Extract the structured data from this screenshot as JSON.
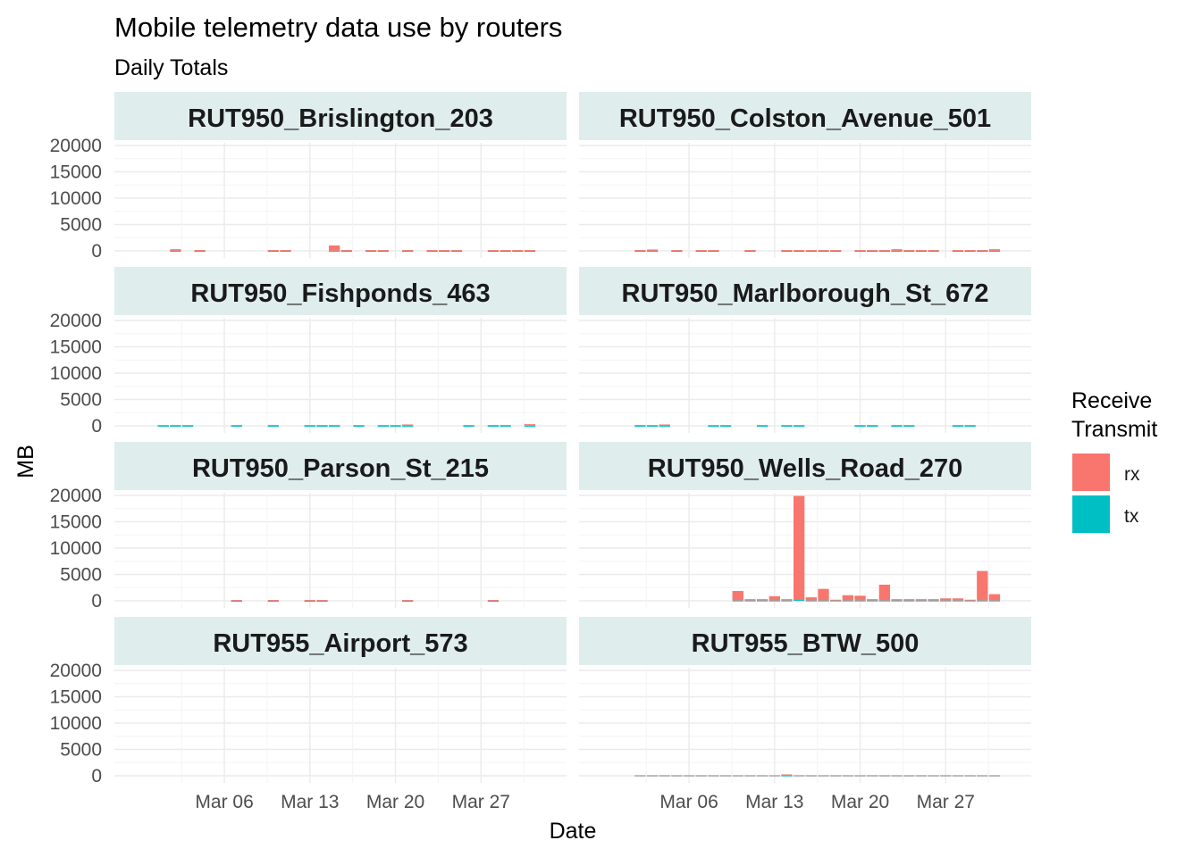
{
  "chart_data": {
    "type": "bar",
    "title": "Mobile telemetry data use by routers",
    "subtitle": "Daily Totals",
    "xlabel": "Date",
    "ylabel": "MB",
    "ylim": [
      0,
      20000
    ],
    "yticks": [
      0,
      5000,
      10000,
      15000,
      20000
    ],
    "ytick_labels": [
      "0",
      "5000",
      "10000",
      "15000",
      "20000"
    ],
    "xlim": [
      "2022-02-25",
      "2022-04-03"
    ],
    "xticks": [
      "2022-03-06",
      "2022-03-13",
      "2022-03-20",
      "2022-03-27"
    ],
    "xtick_labels": [
      "Mar 06",
      "Mar 13",
      "Mar 20",
      "Mar 27"
    ],
    "stacked": true,
    "grid": true,
    "legend": {
      "title_lines": [
        "Receive",
        "Transmit"
      ],
      "position": "right",
      "entries": [
        {
          "label": "rx",
          "color": "#F8766D"
        },
        {
          "label": "tx",
          "color": "#00BFC4"
        }
      ]
    },
    "colors": {
      "rx": "#F8766D",
      "tx": "#00BFC4",
      "strip": "#E0EDED",
      "grid_major": "#EBEBEB",
      "grid_minor": "#F4F4F4"
    },
    "panels": [
      {
        "title": "RUT950_Brislington_203",
        "data": [
          {
            "date": "2022-03-02",
            "rx": 300,
            "tx": 10
          },
          {
            "date": "2022-03-04",
            "rx": 150,
            "tx": 5
          },
          {
            "date": "2022-03-10",
            "rx": 150,
            "tx": 5
          },
          {
            "date": "2022-03-11",
            "rx": 150,
            "tx": 5
          },
          {
            "date": "2022-03-15",
            "rx": 1000,
            "tx": 20
          },
          {
            "date": "2022-03-16",
            "rx": 150,
            "tx": 5
          },
          {
            "date": "2022-03-18",
            "rx": 150,
            "tx": 5
          },
          {
            "date": "2022-03-19",
            "rx": 150,
            "tx": 5
          },
          {
            "date": "2022-03-21",
            "rx": 150,
            "tx": 5
          },
          {
            "date": "2022-03-23",
            "rx": 150,
            "tx": 5
          },
          {
            "date": "2022-03-24",
            "rx": 150,
            "tx": 5
          },
          {
            "date": "2022-03-25",
            "rx": 150,
            "tx": 5
          },
          {
            "date": "2022-03-28",
            "rx": 150,
            "tx": 5
          },
          {
            "date": "2022-03-29",
            "rx": 150,
            "tx": 5
          },
          {
            "date": "2022-03-30",
            "rx": 150,
            "tx": 5
          },
          {
            "date": "2022-03-31",
            "rx": 150,
            "tx": 5
          }
        ]
      },
      {
        "title": "RUT950_Colston_Avenue_501",
        "data": [
          {
            "date": "2022-03-02",
            "rx": 150,
            "tx": 5
          },
          {
            "date": "2022-03-03",
            "rx": 250,
            "tx": 10
          },
          {
            "date": "2022-03-05",
            "rx": 150,
            "tx": 5
          },
          {
            "date": "2022-03-07",
            "rx": 150,
            "tx": 5
          },
          {
            "date": "2022-03-08",
            "rx": 150,
            "tx": 5
          },
          {
            "date": "2022-03-11",
            "rx": 150,
            "tx": 5
          },
          {
            "date": "2022-03-14",
            "rx": 150,
            "tx": 5
          },
          {
            "date": "2022-03-15",
            "rx": 150,
            "tx": 5
          },
          {
            "date": "2022-03-16",
            "rx": 150,
            "tx": 5
          },
          {
            "date": "2022-03-17",
            "rx": 150,
            "tx": 5
          },
          {
            "date": "2022-03-18",
            "rx": 150,
            "tx": 5
          },
          {
            "date": "2022-03-20",
            "rx": 150,
            "tx": 5
          },
          {
            "date": "2022-03-21",
            "rx": 150,
            "tx": 5
          },
          {
            "date": "2022-03-22",
            "rx": 150,
            "tx": 5
          },
          {
            "date": "2022-03-23",
            "rx": 300,
            "tx": 10
          },
          {
            "date": "2022-03-24",
            "rx": 150,
            "tx": 5
          },
          {
            "date": "2022-03-25",
            "rx": 150,
            "tx": 5
          },
          {
            "date": "2022-03-26",
            "rx": 150,
            "tx": 5
          },
          {
            "date": "2022-03-28",
            "rx": 150,
            "tx": 5
          },
          {
            "date": "2022-03-29",
            "rx": 150,
            "tx": 5
          },
          {
            "date": "2022-03-30",
            "rx": 150,
            "tx": 5
          },
          {
            "date": "2022-03-31",
            "rx": 300,
            "tx": 10
          }
        ]
      },
      {
        "title": "RUT950_Fishponds_463",
        "data": [
          {
            "date": "2022-03-01",
            "rx": 150,
            "tx": 5
          },
          {
            "date": "2022-03-02",
            "rx": 150,
            "tx": 5
          },
          {
            "date": "2022-03-03",
            "rx": 150,
            "tx": 5
          },
          {
            "date": "2022-03-07",
            "rx": 150,
            "tx": 5
          },
          {
            "date": "2022-03-10",
            "rx": 150,
            "tx": 5
          },
          {
            "date": "2022-03-13",
            "rx": 150,
            "tx": 5
          },
          {
            "date": "2022-03-14",
            "rx": 150,
            "tx": 5
          },
          {
            "date": "2022-03-15",
            "rx": 150,
            "tx": 5
          },
          {
            "date": "2022-03-17",
            "rx": 150,
            "tx": 5
          },
          {
            "date": "2022-03-19",
            "rx": 150,
            "tx": 5
          },
          {
            "date": "2022-03-20",
            "rx": 150,
            "tx": 5
          },
          {
            "date": "2022-03-21",
            "rx": 250,
            "tx": 10
          },
          {
            "date": "2022-03-26",
            "rx": 150,
            "tx": 5
          },
          {
            "date": "2022-03-28",
            "rx": 150,
            "tx": 5
          },
          {
            "date": "2022-03-29",
            "rx": 150,
            "tx": 5
          },
          {
            "date": "2022-03-31",
            "rx": 300,
            "tx": 10
          }
        ]
      },
      {
        "title": "RUT950_Marlborough_St_672",
        "data": [
          {
            "date": "2022-03-02",
            "rx": 150,
            "tx": 5
          },
          {
            "date": "2022-03-03",
            "rx": 150,
            "tx": 5
          },
          {
            "date": "2022-03-04",
            "rx": 250,
            "tx": 10
          },
          {
            "date": "2022-03-08",
            "rx": 150,
            "tx": 5
          },
          {
            "date": "2022-03-09",
            "rx": 150,
            "tx": 5
          },
          {
            "date": "2022-03-12",
            "rx": 150,
            "tx": 5
          },
          {
            "date": "2022-03-14",
            "rx": 150,
            "tx": 5
          },
          {
            "date": "2022-03-15",
            "rx": 150,
            "tx": 5
          },
          {
            "date": "2022-03-20",
            "rx": 150,
            "tx": 5
          },
          {
            "date": "2022-03-21",
            "rx": 150,
            "tx": 5
          },
          {
            "date": "2022-03-23",
            "rx": 150,
            "tx": 5
          },
          {
            "date": "2022-03-24",
            "rx": 150,
            "tx": 5
          },
          {
            "date": "2022-03-28",
            "rx": 150,
            "tx": 5
          },
          {
            "date": "2022-03-29",
            "rx": 150,
            "tx": 5
          }
        ]
      },
      {
        "title": "RUT950_Parson_St_215",
        "data": [
          {
            "date": "2022-03-07",
            "rx": 150,
            "tx": 5
          },
          {
            "date": "2022-03-10",
            "rx": 150,
            "tx": 5
          },
          {
            "date": "2022-03-13",
            "rx": 150,
            "tx": 5
          },
          {
            "date": "2022-03-14",
            "rx": 150,
            "tx": 5
          },
          {
            "date": "2022-03-21",
            "rx": 150,
            "tx": 5
          },
          {
            "date": "2022-03-28",
            "rx": 150,
            "tx": 5
          }
        ]
      },
      {
        "title": "RUT950_Wells_Road_270",
        "data": [
          {
            "date": "2022-03-10",
            "rx": 1800,
            "tx": 60
          },
          {
            "date": "2022-03-11",
            "rx": 250,
            "tx": 60
          },
          {
            "date": "2022-03-12",
            "rx": 250,
            "tx": 60
          },
          {
            "date": "2022-03-13",
            "rx": 800,
            "tx": 60
          },
          {
            "date": "2022-03-14",
            "rx": 250,
            "tx": 60
          },
          {
            "date": "2022-03-15",
            "rx": 19600,
            "tx": 300
          },
          {
            "date": "2022-03-16",
            "rx": 600,
            "tx": 60
          },
          {
            "date": "2022-03-17",
            "rx": 2200,
            "tx": 60
          },
          {
            "date": "2022-03-18",
            "rx": 150,
            "tx": 60
          },
          {
            "date": "2022-03-19",
            "rx": 1000,
            "tx": 60
          },
          {
            "date": "2022-03-20",
            "rx": 900,
            "tx": 60
          },
          {
            "date": "2022-03-21",
            "rx": 250,
            "tx": 60
          },
          {
            "date": "2022-03-22",
            "rx": 3000,
            "tx": 60
          },
          {
            "date": "2022-03-23",
            "rx": 250,
            "tx": 60
          },
          {
            "date": "2022-03-24",
            "rx": 250,
            "tx": 60
          },
          {
            "date": "2022-03-25",
            "rx": 250,
            "tx": 60
          },
          {
            "date": "2022-03-26",
            "rx": 250,
            "tx": 60
          },
          {
            "date": "2022-03-27",
            "rx": 400,
            "tx": 60
          },
          {
            "date": "2022-03-28",
            "rx": 400,
            "tx": 60
          },
          {
            "date": "2022-03-29",
            "rx": 150,
            "tx": 60
          },
          {
            "date": "2022-03-30",
            "rx": 5600,
            "tx": 60
          },
          {
            "date": "2022-03-31",
            "rx": 1200,
            "tx": 60
          }
        ]
      },
      {
        "title": "RUT955_Airport_573",
        "data": []
      },
      {
        "title": "RUT955_BTW_500",
        "data": [
          {
            "date": "2022-03-02",
            "rx": 40,
            "tx": 60
          },
          {
            "date": "2022-03-03",
            "rx": 40,
            "tx": 60
          },
          {
            "date": "2022-03-04",
            "rx": 40,
            "tx": 60
          },
          {
            "date": "2022-03-05",
            "rx": 40,
            "tx": 60
          },
          {
            "date": "2022-03-06",
            "rx": 40,
            "tx": 60
          },
          {
            "date": "2022-03-07",
            "rx": 40,
            "tx": 60
          },
          {
            "date": "2022-03-08",
            "rx": 40,
            "tx": 60
          },
          {
            "date": "2022-03-09",
            "rx": 40,
            "tx": 60
          },
          {
            "date": "2022-03-10",
            "rx": 40,
            "tx": 60
          },
          {
            "date": "2022-03-11",
            "rx": 40,
            "tx": 60
          },
          {
            "date": "2022-03-12",
            "rx": 40,
            "tx": 60
          },
          {
            "date": "2022-03-13",
            "rx": 40,
            "tx": 60
          },
          {
            "date": "2022-03-14",
            "rx": 200,
            "tx": 60
          },
          {
            "date": "2022-03-15",
            "rx": 40,
            "tx": 60
          },
          {
            "date": "2022-03-16",
            "rx": 40,
            "tx": 60
          },
          {
            "date": "2022-03-17",
            "rx": 40,
            "tx": 60
          },
          {
            "date": "2022-03-18",
            "rx": 40,
            "tx": 60
          },
          {
            "date": "2022-03-19",
            "rx": 40,
            "tx": 60
          },
          {
            "date": "2022-03-20",
            "rx": 40,
            "tx": 60
          },
          {
            "date": "2022-03-21",
            "rx": 40,
            "tx": 60
          },
          {
            "date": "2022-03-22",
            "rx": 40,
            "tx": 60
          },
          {
            "date": "2022-03-23",
            "rx": 40,
            "tx": 60
          },
          {
            "date": "2022-03-24",
            "rx": 40,
            "tx": 60
          },
          {
            "date": "2022-03-25",
            "rx": 40,
            "tx": 60
          },
          {
            "date": "2022-03-26",
            "rx": 40,
            "tx": 60
          },
          {
            "date": "2022-03-27",
            "rx": 40,
            "tx": 60
          },
          {
            "date": "2022-03-28",
            "rx": 40,
            "tx": 60
          },
          {
            "date": "2022-03-29",
            "rx": 40,
            "tx": 60
          },
          {
            "date": "2022-03-30",
            "rx": 40,
            "tx": 60
          },
          {
            "date": "2022-03-31",
            "rx": 40,
            "tx": 60
          }
        ]
      }
    ]
  }
}
